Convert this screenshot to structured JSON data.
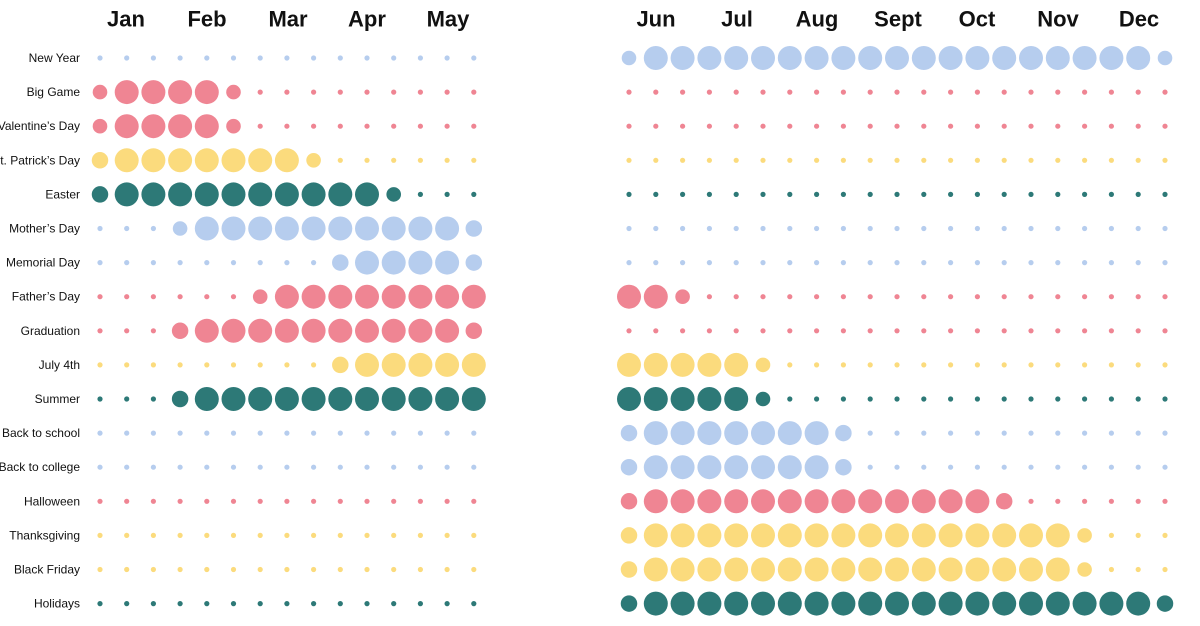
{
  "chart_data": {
    "type": "scatter",
    "title": "",
    "encoding": "dot size = relative level per week (0 = off-season, 1 = peak)",
    "months": [
      "Jan",
      "Feb",
      "Mar",
      "Apr",
      "May",
      "Jun",
      "Jul",
      "Aug",
      "Sept",
      "Oct",
      "Nov",
      "Dec"
    ],
    "weeks_per_panel": [
      15,
      21
    ],
    "colors": {
      "blue": "#b6cdee",
      "red": "#ef8593",
      "yellow": "#fbdb7d",
      "teal": "#2d7977"
    },
    "series": [
      {
        "name": "New Year",
        "color": "blue",
        "first_half": [
          0,
          0,
          0,
          0,
          0,
          0,
          0,
          0,
          0,
          0,
          0,
          0,
          0,
          0,
          0
        ],
        "second_half": [
          0.5,
          1,
          1,
          1,
          1,
          1,
          1,
          1,
          1,
          1,
          1,
          1,
          1,
          1,
          1,
          1,
          1,
          1,
          1,
          1,
          0.5
        ]
      },
      {
        "name": "Big Game",
        "color": "red",
        "first_half": [
          0.5,
          1,
          1,
          1,
          1,
          0.5,
          0,
          0,
          0,
          0,
          0,
          0,
          0,
          0,
          0
        ],
        "second_half": [
          0,
          0,
          0,
          0,
          0,
          0,
          0,
          0,
          0,
          0,
          0,
          0,
          0,
          0,
          0,
          0,
          0,
          0,
          0,
          0,
          0
        ]
      },
      {
        "name": "Valentine’s Day",
        "color": "red",
        "first_half": [
          0.5,
          1,
          1,
          1,
          1,
          0.5,
          0,
          0,
          0,
          0,
          0,
          0,
          0,
          0,
          0
        ],
        "second_half": [
          0,
          0,
          0,
          0,
          0,
          0,
          0,
          0,
          0,
          0,
          0,
          0,
          0,
          0,
          0,
          0,
          0,
          0,
          0,
          0,
          0
        ]
      },
      {
        "name": "St. Patrick’s Day",
        "color": "yellow",
        "first_half": [
          0.6,
          1,
          1,
          1,
          1,
          1,
          1,
          1,
          0.5,
          0,
          0,
          0,
          0,
          0,
          0
        ],
        "second_half": [
          0,
          0,
          0,
          0,
          0,
          0,
          0,
          0,
          0,
          0,
          0,
          0,
          0,
          0,
          0,
          0,
          0,
          0,
          0,
          0,
          0
        ]
      },
      {
        "name": "Easter",
        "color": "teal",
        "first_half": [
          0.6,
          1,
          1,
          1,
          1,
          1,
          1,
          1,
          1,
          1,
          1,
          0.5,
          0,
          0,
          0
        ],
        "second_half": [
          0,
          0,
          0,
          0,
          0,
          0,
          0,
          0,
          0,
          0,
          0,
          0,
          0,
          0,
          0,
          0,
          0,
          0,
          0,
          0,
          0
        ]
      },
      {
        "name": "Mother’s Day",
        "color": "blue",
        "first_half": [
          0,
          0,
          0,
          0.5,
          1,
          1,
          1,
          1,
          1,
          1,
          1,
          1,
          1,
          1,
          0.6
        ],
        "second_half": [
          0,
          0,
          0,
          0,
          0,
          0,
          0,
          0,
          0,
          0,
          0,
          0,
          0,
          0,
          0,
          0,
          0,
          0,
          0,
          0,
          0
        ]
      },
      {
        "name": "Memorial Day",
        "color": "blue",
        "first_half": [
          0,
          0,
          0,
          0,
          0,
          0,
          0,
          0,
          0,
          0.6,
          1,
          1,
          1,
          1,
          0.6
        ],
        "second_half": [
          0,
          0,
          0,
          0,
          0,
          0,
          0,
          0,
          0,
          0,
          0,
          0,
          0,
          0,
          0,
          0,
          0,
          0,
          0,
          0,
          0
        ]
      },
      {
        "name": "Father’s Day",
        "color": "red",
        "first_half": [
          0,
          0,
          0,
          0,
          0,
          0,
          0.5,
          1,
          1,
          1,
          1,
          1,
          1,
          1,
          1
        ],
        "second_half": [
          1,
          1,
          0.5,
          0,
          0,
          0,
          0,
          0,
          0,
          0,
          0,
          0,
          0,
          0,
          0,
          0,
          0,
          0,
          0,
          0,
          0
        ]
      },
      {
        "name": "Graduation",
        "color": "red",
        "first_half": [
          0,
          0,
          0,
          0.6,
          1,
          1,
          1,
          1,
          1,
          1,
          1,
          1,
          1,
          1,
          0.6
        ],
        "second_half": [
          0,
          0,
          0,
          0,
          0,
          0,
          0,
          0,
          0,
          0,
          0,
          0,
          0,
          0,
          0,
          0,
          0,
          0,
          0,
          0,
          0
        ]
      },
      {
        "name": "July 4th",
        "color": "yellow",
        "first_half": [
          0,
          0,
          0,
          0,
          0,
          0,
          0,
          0,
          0,
          0.6,
          1,
          1,
          1,
          1,
          1
        ],
        "second_half": [
          1,
          1,
          1,
          1,
          1,
          0.5,
          0,
          0,
          0,
          0,
          0,
          0,
          0,
          0,
          0,
          0,
          0,
          0,
          0,
          0,
          0
        ]
      },
      {
        "name": "Summer",
        "color": "teal",
        "first_half": [
          0,
          0,
          0,
          0.6,
          1,
          1,
          1,
          1,
          1,
          1,
          1,
          1,
          1,
          1,
          1
        ],
        "second_half": [
          1,
          1,
          1,
          1,
          1,
          0.5,
          0,
          0,
          0,
          0,
          0,
          0,
          0,
          0,
          0,
          0,
          0,
          0,
          0,
          0,
          0
        ]
      },
      {
        "name": "Back to school",
        "color": "blue",
        "first_half": [
          0,
          0,
          0,
          0,
          0,
          0,
          0,
          0,
          0,
          0,
          0,
          0,
          0,
          0,
          0
        ],
        "second_half": [
          0.6,
          1,
          1,
          1,
          1,
          1,
          1,
          1,
          0.6,
          0,
          0,
          0,
          0,
          0,
          0,
          0,
          0,
          0,
          0,
          0,
          0
        ]
      },
      {
        "name": "Back to college",
        "color": "blue",
        "first_half": [
          0,
          0,
          0,
          0,
          0,
          0,
          0,
          0,
          0,
          0,
          0,
          0,
          0,
          0,
          0
        ],
        "second_half": [
          0.6,
          1,
          1,
          1,
          1,
          1,
          1,
          1,
          0.6,
          0,
          0,
          0,
          0,
          0,
          0,
          0,
          0,
          0,
          0,
          0,
          0
        ]
      },
      {
        "name": "Halloween",
        "color": "red",
        "first_half": [
          0,
          0,
          0,
          0,
          0,
          0,
          0,
          0,
          0,
          0,
          0,
          0,
          0,
          0,
          0
        ],
        "second_half": [
          0.6,
          1,
          1,
          1,
          1,
          1,
          1,
          1,
          1,
          1,
          1,
          1,
          1,
          1,
          0.6,
          0,
          0,
          0,
          0,
          0,
          0
        ]
      },
      {
        "name": "Thanksgiving",
        "color": "yellow",
        "first_half": [
          0,
          0,
          0,
          0,
          0,
          0,
          0,
          0,
          0,
          0,
          0,
          0,
          0,
          0,
          0
        ],
        "second_half": [
          0.6,
          1,
          1,
          1,
          1,
          1,
          1,
          1,
          1,
          1,
          1,
          1,
          1,
          1,
          1,
          1,
          1,
          0.5,
          0,
          0,
          0
        ]
      },
      {
        "name": "Black Friday",
        "color": "yellow",
        "first_half": [
          0,
          0,
          0,
          0,
          0,
          0,
          0,
          0,
          0,
          0,
          0,
          0,
          0,
          0,
          0
        ],
        "second_half": [
          0.6,
          1,
          1,
          1,
          1,
          1,
          1,
          1,
          1,
          1,
          1,
          1,
          1,
          1,
          1,
          1,
          1,
          0.5,
          0,
          0,
          0
        ]
      },
      {
        "name": "Holidays",
        "color": "teal",
        "first_half": [
          0,
          0,
          0,
          0,
          0,
          0,
          0,
          0,
          0,
          0,
          0,
          0,
          0,
          0,
          0
        ],
        "second_half": [
          0.6,
          1,
          1,
          1,
          1,
          1,
          1,
          1,
          1,
          1,
          1,
          1,
          1,
          1,
          1,
          1,
          1,
          1,
          1,
          1,
          0.6
        ]
      }
    ]
  }
}
